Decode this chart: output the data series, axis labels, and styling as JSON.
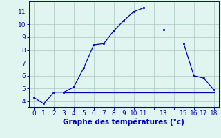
{
  "x_all": [
    0,
    1,
    2,
    3,
    4,
    5,
    6,
    7,
    8,
    9,
    10,
    11,
    12,
    13,
    14,
    15,
    16,
    17,
    18
  ],
  "y_line1": [
    4.3,
    3.8,
    4.7,
    4.7,
    5.1,
    6.6,
    8.4,
    8.5,
    9.5,
    10.3,
    11.0,
    11.3,
    null,
    9.6,
    null,
    8.5,
    6.0,
    5.8,
    4.9
  ],
  "y_line2": [
    null,
    null,
    null,
    4.7,
    4.7,
    4.7,
    4.7,
    4.7,
    4.7,
    4.7,
    4.7,
    4.7,
    4.7,
    4.7,
    4.7,
    4.7,
    4.7,
    4.7,
    4.7
  ],
  "line_color": "#0000bb",
  "bg_color": "#e0f5f0",
  "grid_color": "#a8c8c0",
  "xlabel": "Graphe des températures (°c)",
  "xlabel_fontsize": 7.5,
  "ylim": [
    3.5,
    11.8
  ],
  "xlim": [
    -0.5,
    18.5
  ],
  "yticks": [
    4,
    5,
    6,
    7,
    8,
    9,
    10,
    11
  ],
  "xtick_positions": [
    0,
    1,
    2,
    3,
    4,
    5,
    6,
    7,
    8,
    9,
    10,
    11,
    12,
    13,
    14,
    15,
    16,
    17,
    18
  ],
  "xtick_labels": [
    "0",
    "1",
    "2",
    "3",
    "4",
    "5",
    "6",
    "7",
    "8",
    "9",
    "10",
    "11",
    "",
    "13",
    "",
    "15",
    "16",
    "17",
    "18"
  ]
}
